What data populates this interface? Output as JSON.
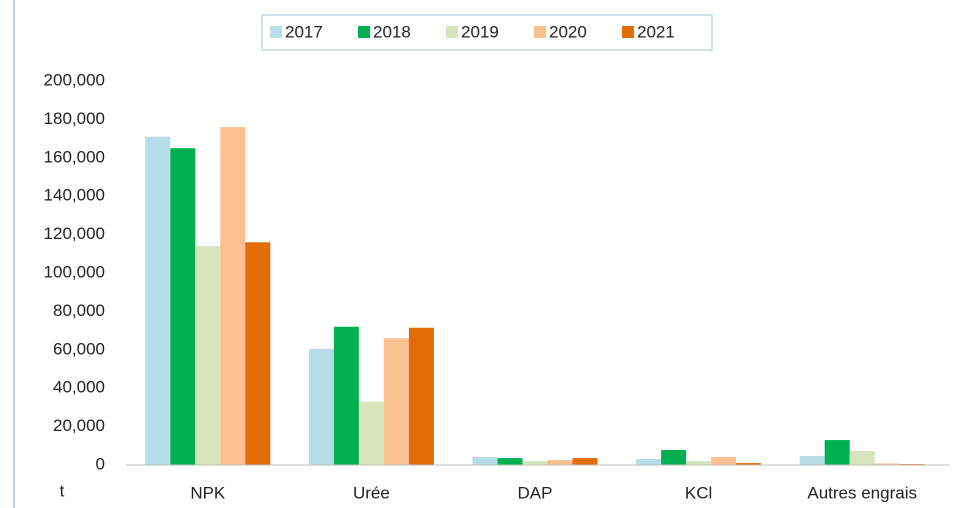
{
  "chart_data": {
    "type": "bar",
    "y_label": "t",
    "categories": [
      "NPK",
      "Urée",
      "DAP",
      "KCl",
      "Autres engrais"
    ],
    "series": [
      {
        "name": "2017",
        "color": "#b7dde8",
        "values": [
          171000,
          60500,
          4200,
          3100,
          4700
        ]
      },
      {
        "name": "2018",
        "color": "#00b050",
        "values": [
          165000,
          72000,
          3600,
          7800,
          13000
        ]
      },
      {
        "name": "2019",
        "color": "#d8e4bc",
        "values": [
          114000,
          33000,
          2100,
          2100,
          7300
        ]
      },
      {
        "name": "2020",
        "color": "#fac090",
        "values": [
          176000,
          66000,
          2600,
          4200,
          800
        ]
      },
      {
        "name": "2021",
        "color": "#e36c09",
        "values": [
          116000,
          71500,
          3600,
          1000,
          500
        ]
      }
    ],
    "ylim": [
      0,
      200000
    ],
    "yticks": [
      0,
      {
        "value": 20000,
        "label": "20,000"
      },
      {
        "value": 40000,
        "label": "40,000"
      },
      {
        "value": 60000,
        "label": "60,000"
      },
      {
        "value": 80000,
        "label": "80,000"
      },
      {
        "value": 100000,
        "label": "100,000"
      },
      {
        "value": 120000,
        "label": "120,000"
      },
      {
        "value": 140000,
        "label": "140,000"
      },
      {
        "value": 160000,
        "label": "160,000"
      },
      {
        "value": 180000,
        "label": "180,000"
      },
      {
        "value": 200000,
        "label": "200,000"
      }
    ],
    "grid": false,
    "legend": "top"
  }
}
